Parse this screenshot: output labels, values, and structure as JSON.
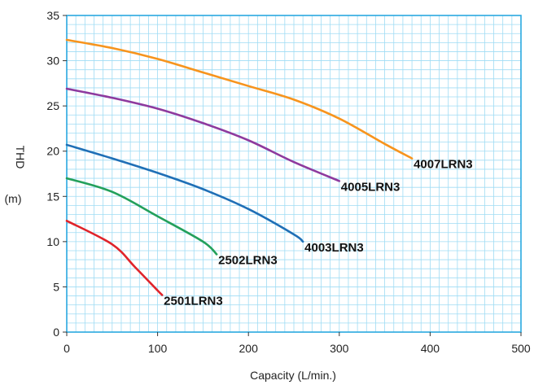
{
  "chart_data": {
    "type": "line",
    "title": "",
    "xlabel": "Capacity (L/min.)",
    "ylabel": "THD",
    "ylabel_unit": "(m)",
    "xlim": [
      0,
      500
    ],
    "ylim": [
      0,
      35
    ],
    "x_ticks": [
      0,
      100,
      200,
      300,
      400,
      500
    ],
    "y_ticks": [
      0,
      5,
      10,
      15,
      20,
      25,
      30,
      35
    ],
    "grid": true,
    "colors": {
      "grid": "#9fdcf4",
      "frame": "#2aa8e0"
    },
    "series": [
      {
        "name": "4007LRN3",
        "color": "#f7941d",
        "x": [
          0,
          50,
          100,
          150,
          200,
          250,
          300,
          350,
          380
        ],
        "y": [
          32.3,
          31.4,
          30.2,
          28.7,
          27.2,
          25.7,
          23.6,
          20.8,
          19.2
        ]
      },
      {
        "name": "4005LRN3",
        "color": "#8e3a9e",
        "x": [
          0,
          50,
          100,
          150,
          200,
          250,
          300
        ],
        "y": [
          26.9,
          25.9,
          24.7,
          23.1,
          21.2,
          18.8,
          16.7
        ]
      },
      {
        "name": "4003LRN3",
        "color": "#1f6fb6",
        "x": [
          0,
          50,
          100,
          150,
          200,
          250,
          260
        ],
        "y": [
          20.7,
          19.2,
          17.6,
          15.8,
          13.6,
          10.8,
          10.0
        ]
      },
      {
        "name": "2502LRN3",
        "color": "#23a05b",
        "x": [
          0,
          50,
          100,
          150,
          165
        ],
        "y": [
          17.0,
          15.5,
          12.8,
          10.0,
          8.6
        ]
      },
      {
        "name": "2501LRN3",
        "color": "#e0232a",
        "x": [
          0,
          50,
          75,
          100,
          105
        ],
        "y": [
          12.3,
          9.7,
          7.2,
          4.6,
          4.1
        ]
      }
    ]
  }
}
